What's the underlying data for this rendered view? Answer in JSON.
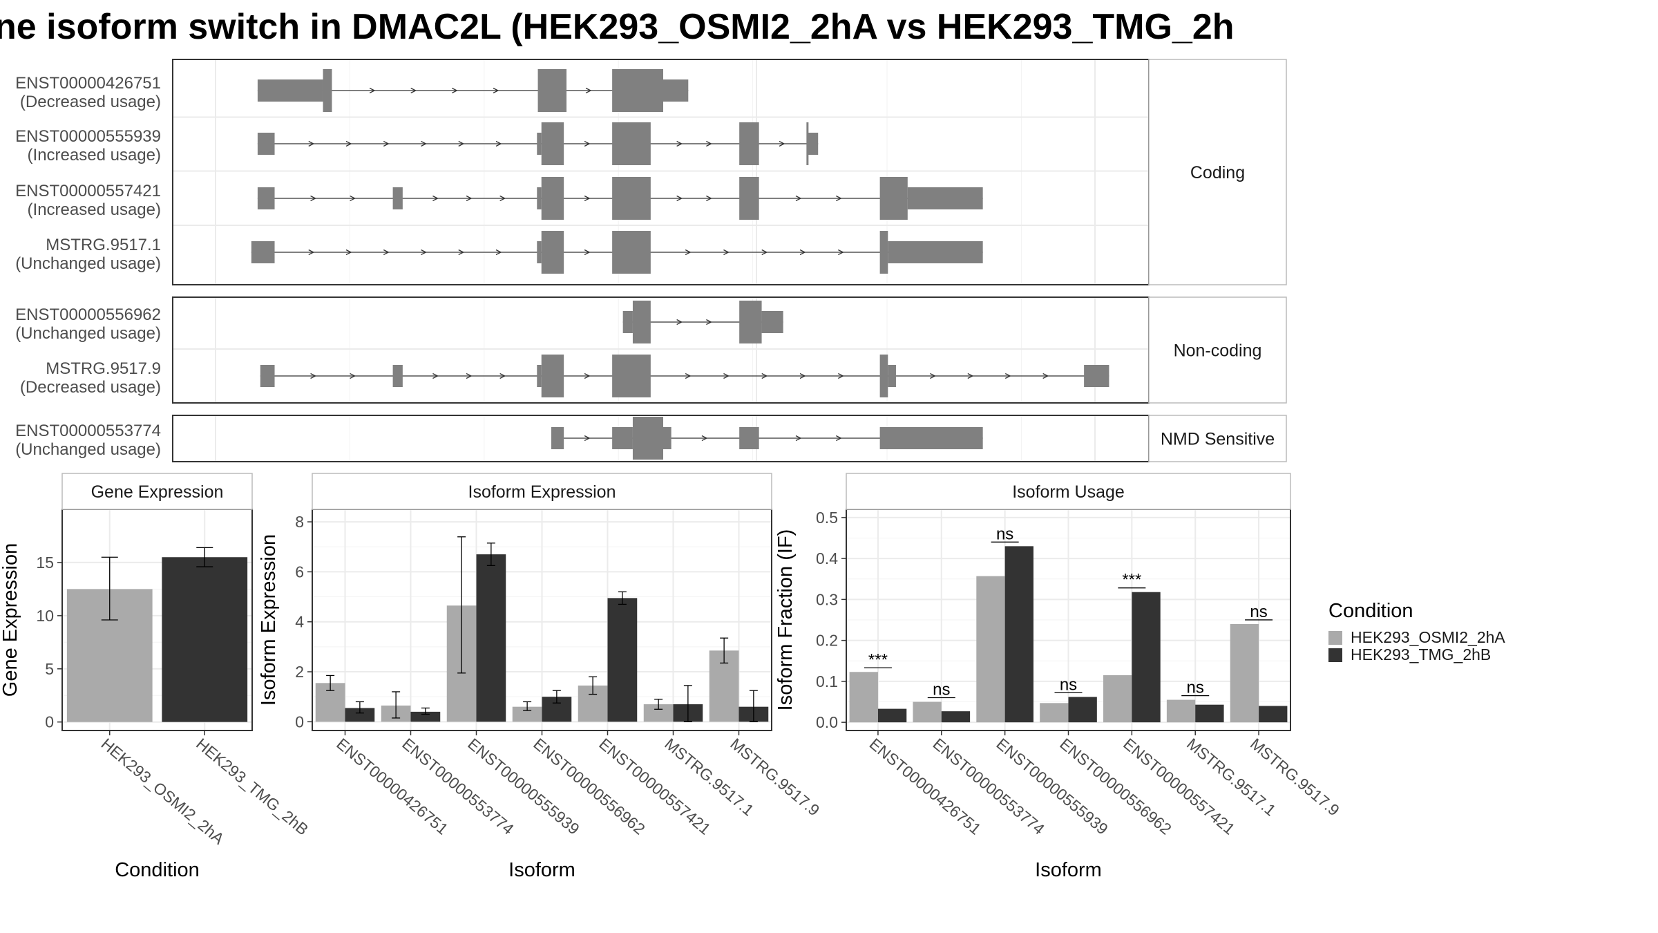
{
  "title": "ne isoform switch in DMAC2L (HEK293_OSMI2_2hA vs HEK293_TMG_2h",
  "colors": {
    "cond_a": "#aaaaaa",
    "cond_b": "#333333",
    "exon": "#808080",
    "intron": "#333333",
    "grid": "#ebebeb",
    "strip_border": "#bbbbbb",
    "panel_border": "#333333"
  },
  "legend": {
    "title": "Condition",
    "items": [
      {
        "label": "HEK293_OSMI2_2hA",
        "color": "#aaaaaa"
      },
      {
        "label": "HEK293_TMG_2hB",
        "color": "#333333"
      }
    ]
  },
  "structure": {
    "sections": [
      {
        "label": "Coding",
        "isoforms": [
          {
            "id": "ENST00000426751",
            "usage": "(Decreased usage)",
            "start": 0.047,
            "end": 0.528,
            "exons": [
              [
                0.047,
                0.12,
                "thin"
              ],
              [
                0.12,
                0.13,
                "thick"
              ],
              [
                0.36,
                0.392,
                "thick"
              ],
              [
                0.443,
                0.5,
                "thick"
              ],
              [
                0.5,
                0.528,
                "thin"
              ]
            ]
          },
          {
            "id": "ENST00000555939",
            "usage": "(Increased usage)",
            "start": 0.047,
            "end": 0.673,
            "exons": [
              [
                0.047,
                0.066,
                "thin"
              ],
              [
                0.359,
                0.364,
                "thin"
              ],
              [
                0.364,
                0.389,
                "thick"
              ],
              [
                0.443,
                0.486,
                "thick"
              ],
              [
                0.585,
                0.607,
                "thick"
              ],
              [
                0.66,
                0.662,
                "thick"
              ],
              [
                0.662,
                0.673,
                "thin"
              ]
            ]
          },
          {
            "id": "ENST00000557421",
            "usage": "(Increased usage)",
            "start": 0.047,
            "end": 0.857,
            "exons": [
              [
                0.047,
                0.066,
                "thin"
              ],
              [
                0.198,
                0.209,
                "thin"
              ],
              [
                0.359,
                0.364,
                "thin"
              ],
              [
                0.364,
                0.389,
                "thick"
              ],
              [
                0.443,
                0.486,
                "thick"
              ],
              [
                0.585,
                0.607,
                "thick"
              ],
              [
                0.742,
                0.773,
                "thick"
              ],
              [
                0.773,
                0.857,
                "thin"
              ]
            ]
          },
          {
            "id": "MSTRG.9517.1",
            "usage": "(Unchanged usage)",
            "start": 0.04,
            "end": 0.857,
            "exons": [
              [
                0.04,
                0.066,
                "thin"
              ],
              [
                0.359,
                0.364,
                "thin"
              ],
              [
                0.364,
                0.389,
                "thick"
              ],
              [
                0.443,
                0.486,
                "thick"
              ],
              [
                0.742,
                0.751,
                "thick"
              ],
              [
                0.751,
                0.857,
                "thin"
              ]
            ]
          }
        ]
      },
      {
        "label": "Non-coding",
        "isoforms": [
          {
            "id": "ENST00000556962",
            "usage": "(Unchanged usage)",
            "start": 0.455,
            "end": 0.634,
            "exons": [
              [
                0.455,
                0.466,
                "thin"
              ],
              [
                0.466,
                0.486,
                "thick"
              ],
              [
                0.585,
                0.61,
                "thick"
              ],
              [
                0.61,
                0.634,
                "thin"
              ]
            ]
          },
          {
            "id": "MSTRG.9517.9",
            "usage": "(Decreased usage)",
            "start": 0.05,
            "end": 0.998,
            "exons": [
              [
                0.05,
                0.066,
                "thin"
              ],
              [
                0.198,
                0.209,
                "thin"
              ],
              [
                0.359,
                0.364,
                "thin"
              ],
              [
                0.364,
                0.389,
                "thick"
              ],
              [
                0.443,
                0.486,
                "thick"
              ],
              [
                0.742,
                0.751,
                "thick"
              ],
              [
                0.751,
                0.76,
                "thin"
              ],
              [
                0.97,
                0.998,
                "thin"
              ]
            ]
          }
        ]
      },
      {
        "label": "NMD Sensitive",
        "isoforms": [
          {
            "id": "ENST00000553774",
            "usage": "(Unchanged usage)",
            "start": 0.375,
            "end": 0.857,
            "exons": [
              [
                0.375,
                0.389,
                "thin"
              ],
              [
                0.443,
                0.466,
                "thin"
              ],
              [
                0.466,
                0.5,
                "thick"
              ],
              [
                0.5,
                0.509,
                "thin"
              ],
              [
                0.585,
                0.607,
                "thin"
              ],
              [
                0.742,
                0.857,
                "thin"
              ]
            ]
          }
        ]
      }
    ]
  },
  "chart_data": [
    {
      "type": "bar",
      "title": "Gene Expression",
      "xlabel": "Condition",
      "ylabel": "Gene Expression",
      "ylim": [
        -0.8,
        20
      ],
      "yticks": [
        0,
        5,
        10,
        15
      ],
      "categories": [
        "HEK293_OSMI2_2hA",
        "HEK293_TMG_2hB"
      ],
      "values": [
        12.5,
        15.5
      ],
      "err_low": [
        9.6,
        14.6
      ],
      "err_high": [
        15.5,
        16.4
      ],
      "colors": [
        "#aaaaaa",
        "#333333"
      ]
    },
    {
      "type": "bar",
      "title": "Isoform Expression",
      "xlabel": "Isoform",
      "ylabel": "Isoform Expression",
      "ylim": [
        -0.35,
        8.5
      ],
      "yticks": [
        0,
        2,
        4,
        6,
        8
      ],
      "categories": [
        "ENST00000426751",
        "ENST00000553774",
        "ENST00000555939",
        "ENST00000556962",
        "ENST00000557421",
        "MSTRG.9517.1",
        "MSTRG.9517.9"
      ],
      "series": [
        {
          "name": "HEK293_OSMI2_2hA",
          "values": [
            1.55,
            0.65,
            4.65,
            0.6,
            1.45,
            0.7,
            2.85
          ],
          "err_low": [
            1.25,
            0.15,
            1.95,
            0.45,
            1.1,
            0.5,
            2.35
          ],
          "err_high": [
            1.85,
            1.2,
            7.4,
            0.8,
            1.8,
            0.9,
            3.35
          ]
        },
        {
          "name": "HEK293_TMG_2hB",
          "values": [
            0.55,
            0.4,
            6.7,
            1.0,
            4.95,
            0.7,
            0.6
          ],
          "err_low": [
            0.35,
            0.3,
            6.25,
            0.75,
            4.7,
            0.0,
            0.0
          ],
          "err_high": [
            0.8,
            0.55,
            7.15,
            1.25,
            5.2,
            1.45,
            1.25
          ]
        }
      ]
    },
    {
      "type": "bar",
      "title": "Isoform Usage",
      "xlabel": "Isoform",
      "ylabel": "Isoform Fraction (IF)",
      "ylim": [
        -0.02,
        0.52
      ],
      "yticks": [
        0.0,
        0.1,
        0.2,
        0.3,
        0.4,
        0.5
      ],
      "ytick_labels": [
        "0.0",
        "0.1",
        "0.2",
        "0.3",
        "0.4",
        "0.5"
      ],
      "categories": [
        "ENST00000426751",
        "ENST00000553774",
        "ENST00000555939",
        "ENST00000556962",
        "ENST00000557421",
        "MSTRG.9517.1",
        "MSTRG.9517.9"
      ],
      "series": [
        {
          "name": "HEK293_OSMI2_2hA",
          "values": [
            0.123,
            0.05,
            0.357,
            0.047,
            0.115,
            0.055,
            0.24
          ]
        },
        {
          "name": "HEK293_TMG_2hB",
          "values": [
            0.033,
            0.027,
            0.43,
            0.062,
            0.318,
            0.043,
            0.04
          ]
        }
      ],
      "significance": [
        "***",
        "ns",
        "ns",
        "ns",
        "***",
        "ns",
        "ns"
      ]
    }
  ]
}
